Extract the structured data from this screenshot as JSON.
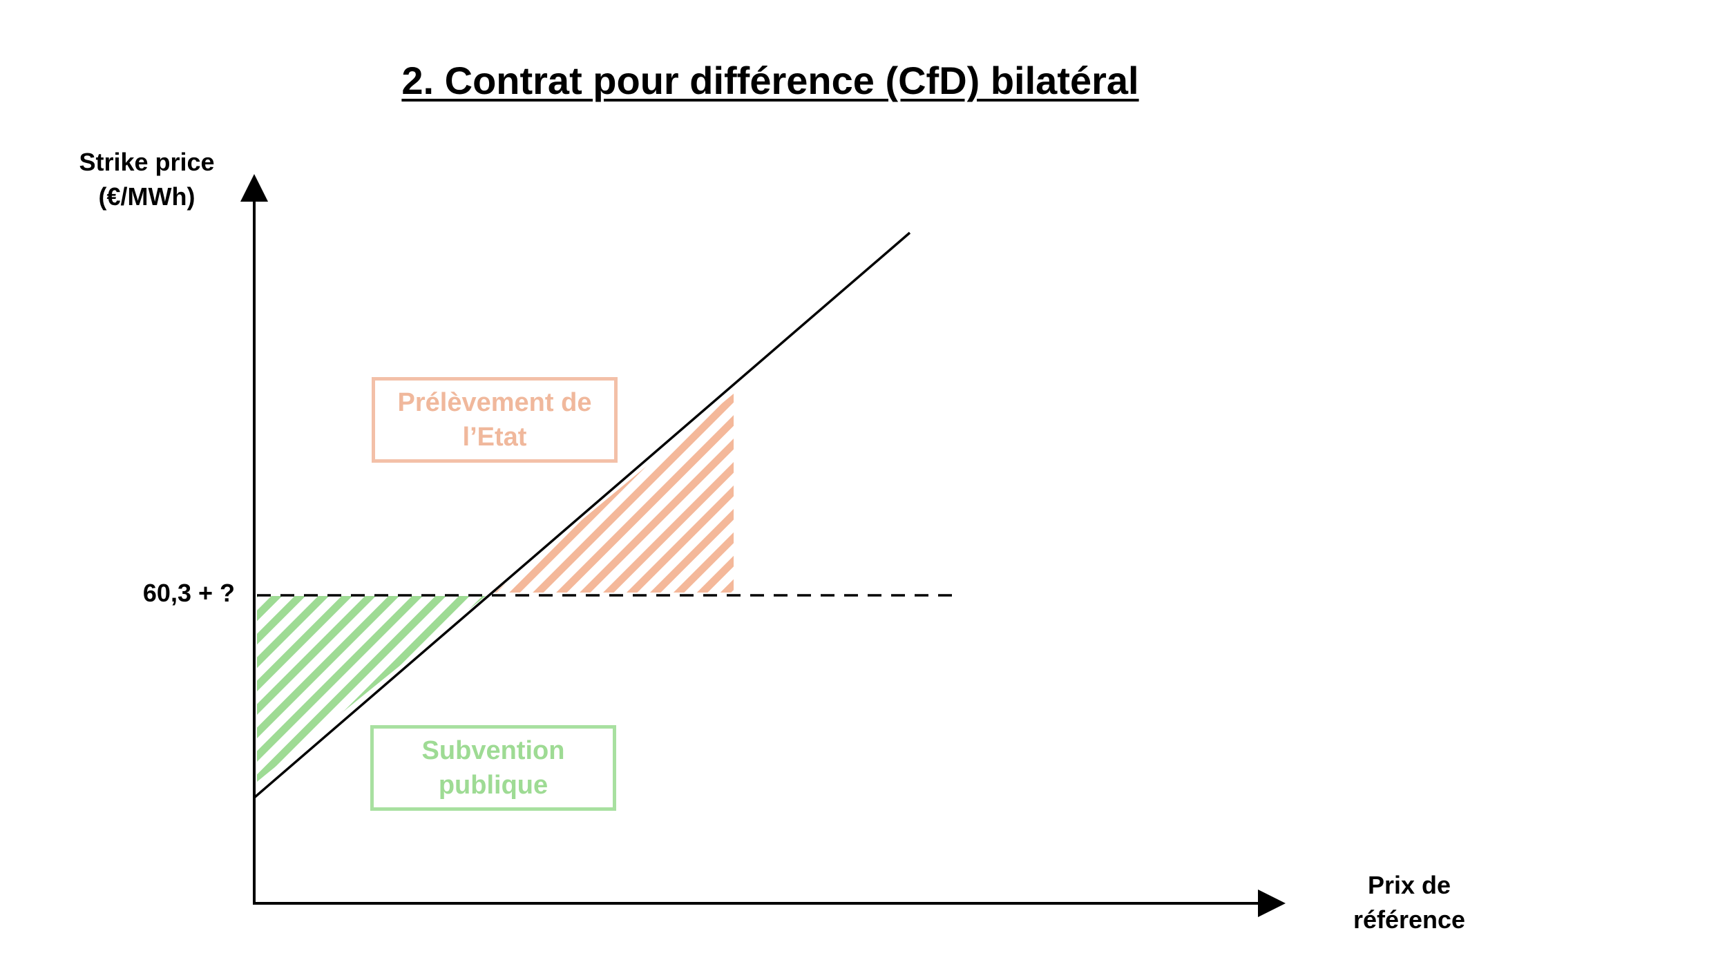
{
  "title": "2. Contrat pour différence (CfD) bilatéral",
  "y_axis_label": [
    "Strike price",
    "(€/MWh)"
  ],
  "x_axis_label": [
    "Prix de",
    "référence"
  ],
  "strike_level_label": "60,3 + ?",
  "regions": {
    "levy": {
      "label": [
        "Prélèvement de",
        "l’Etat"
      ],
      "color": "#f4b89a",
      "text_color": "#f0b89c"
    },
    "subsidy": {
      "label": [
        "Subvention",
        "publique"
      ],
      "color": "#9edb94",
      "text_color": "#9edb94"
    }
  }
}
